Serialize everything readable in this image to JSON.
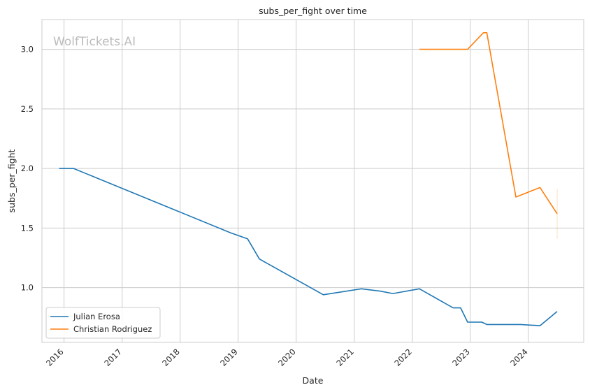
{
  "chart_data": {
    "type": "line",
    "title": "subs_per_fight over time",
    "xlabel": "Date",
    "ylabel": "subs_per_fight",
    "watermark": "WolfTickets.AI",
    "xlim": [
      "2015-08-15",
      "2024-12-15"
    ],
    "ylim": [
      0.54,
      3.25
    ],
    "x_ticks": [
      "2016",
      "2017",
      "2018",
      "2019",
      "2020",
      "2021",
      "2022",
      "2023",
      "2024"
    ],
    "y_ticks": [
      "1.0",
      "1.5",
      "2.0",
      "2.5",
      "3.0"
    ],
    "grid": true,
    "legend_position": "lower-left",
    "series": [
      {
        "name": "Julian Erosa",
        "color": "#1f77b4",
        "points": [
          [
            "2015-12-01",
            2.0
          ],
          [
            "2016-03-01",
            2.0
          ],
          [
            "2018-11-15",
            1.46
          ],
          [
            "2019-03-01",
            1.41
          ],
          [
            "2019-05-15",
            1.24
          ],
          [
            "2020-06-20",
            0.94
          ],
          [
            "2021-02-15",
            0.99
          ],
          [
            "2021-06-15",
            0.97
          ],
          [
            "2021-09-01",
            0.95
          ],
          [
            "2022-02-15",
            0.99
          ],
          [
            "2022-09-15",
            0.83
          ],
          [
            "2022-11-01",
            0.83
          ],
          [
            "2022-12-15",
            0.71
          ],
          [
            "2023-03-15",
            0.71
          ],
          [
            "2023-04-15",
            0.69
          ],
          [
            "2023-11-15",
            0.69
          ],
          [
            "2024-03-15",
            0.68
          ],
          [
            "2024-07-01",
            0.8
          ]
        ]
      },
      {
        "name": "Christian Rodriguez",
        "color": "#ff7f0e",
        "points": [
          [
            "2022-02-15",
            3.0
          ],
          [
            "2022-12-15",
            3.0
          ],
          [
            "2023-03-25",
            3.14
          ],
          [
            "2023-04-15",
            3.14
          ],
          [
            "2023-10-15",
            1.76
          ],
          [
            "2024-03-15",
            1.84
          ],
          [
            "2024-07-01",
            1.62
          ]
        ],
        "error_band": {
          "x": "2024-07-01",
          "low": 1.41,
          "high": 1.83
        }
      }
    ]
  }
}
